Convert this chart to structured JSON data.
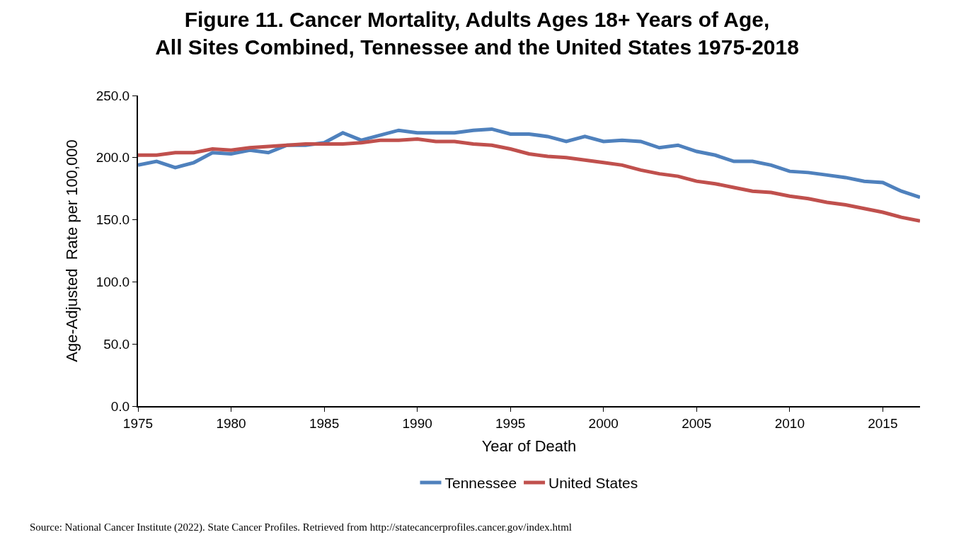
{
  "chart_data": {
    "type": "line",
    "title": "Figure 11. Cancer Mortality, Adults Ages 18+ Years of Age,\nAll Sites Combined, Tennessee and the United States 1975-2018",
    "xlabel": "Year of Death",
    "ylabel": "Age-Adjusted  Rate per 100,000",
    "x": [
      1975,
      1976,
      1977,
      1978,
      1979,
      1980,
      1981,
      1982,
      1983,
      1984,
      1985,
      1986,
      1987,
      1988,
      1989,
      1990,
      1991,
      1992,
      1993,
      1994,
      1995,
      1996,
      1997,
      1998,
      1999,
      2000,
      2001,
      2002,
      2003,
      2004,
      2005,
      2006,
      2007,
      2008,
      2009,
      2010,
      2011,
      2012,
      2013,
      2014,
      2015,
      2016,
      2017
    ],
    "series": [
      {
        "name": "Tennessee",
        "color": "#4f81bd",
        "values": [
          194,
          197,
          192,
          196,
          204,
          203,
          206,
          204,
          210,
          210,
          212,
          220,
          214,
          218,
          222,
          220,
          220,
          220,
          222,
          223,
          219,
          219,
          217,
          213,
          217,
          213,
          214,
          213,
          208,
          210,
          205,
          202,
          197,
          197,
          194,
          189,
          188,
          186,
          184,
          181,
          180,
          173,
          168
        ]
      },
      {
        "name": "United States",
        "color": "#c0504d",
        "values": [
          202,
          202,
          204,
          204,
          207,
          206,
          208,
          209,
          210,
          211,
          211,
          211,
          212,
          214,
          214,
          215,
          213,
          213,
          211,
          210,
          207,
          203,
          201,
          200,
          198,
          196,
          194,
          190,
          187,
          185,
          181,
          179,
          176,
          173,
          172,
          169,
          167,
          164,
          162,
          159,
          156,
          152,
          149
        ]
      }
    ],
    "xlim": [
      1975,
      2017
    ],
    "xticks": [
      1975,
      1980,
      1985,
      1990,
      1995,
      2000,
      2005,
      2010,
      2015
    ],
    "ylim": [
      0,
      250
    ],
    "yticks": [
      {
        "value": 0,
        "label": "0.0"
      },
      {
        "value": 50,
        "label": "50.0"
      },
      {
        "value": 100,
        "label": "100.0"
      },
      {
        "value": 150,
        "label": "150.0"
      },
      {
        "value": 200,
        "label": "200.0"
      },
      {
        "value": 250,
        "label": "250.0"
      }
    ],
    "legend": "bottom",
    "marker": "none",
    "line_style": "solid",
    "annotations": [
      "Source: National Cancer Institute (2022). State Cancer Profiles. Retrieved from http://statecancerprofiles.cancer.gov/index.html"
    ]
  }
}
